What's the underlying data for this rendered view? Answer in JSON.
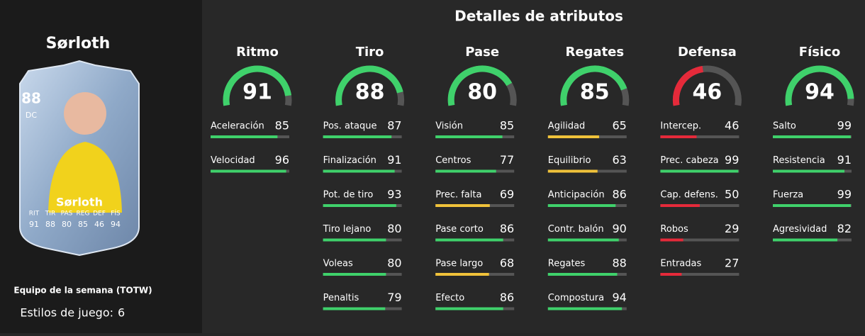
{
  "player": {
    "name": "Sørloth",
    "card": {
      "rating": 88,
      "position": "DC",
      "name": "Sørloth",
      "stat_labels": [
        "RIT",
        "TIR",
        "PAS",
        "REG",
        "DEF",
        "FÍS"
      ]
    },
    "promo": "Equipo de la semana (TOTW)",
    "playstyles": {
      "label": "Estilos de juego:",
      "value": 6
    }
  },
  "attributes": {
    "title": "Detalles de atributos",
    "categories": [
      {
        "name": "Ritmo",
        "rating": 91,
        "stats": [
          [
            "Aceleración",
            85
          ],
          [
            "Velocidad",
            96
          ]
        ]
      },
      {
        "name": "Tiro",
        "rating": 88,
        "stats": [
          [
            "Pos. ataque",
            87
          ],
          [
            "Finalización",
            91
          ],
          [
            "Pot. de tiro",
            93
          ],
          [
            "Tiro lejano",
            80
          ],
          [
            "Voleas",
            80
          ],
          [
            "Penaltis",
            79
          ]
        ]
      },
      {
        "name": "Pase",
        "rating": 80,
        "stats": [
          [
            "Visión",
            85
          ],
          [
            "Centros",
            77
          ],
          [
            "Prec. falta",
            69
          ],
          [
            "Pase corto",
            86
          ],
          [
            "Pase largo",
            68
          ],
          [
            "Efecto",
            86
          ]
        ]
      },
      {
        "name": "Regates",
        "rating": 85,
        "stats": [
          [
            "Agilidad",
            65
          ],
          [
            "Equilibrio",
            63
          ],
          [
            "Anticipación",
            86
          ],
          [
            "Contr. balón",
            90
          ],
          [
            "Regates",
            88
          ],
          [
            "Compostura",
            94
          ]
        ]
      },
      {
        "name": "Defensa",
        "rating": 46,
        "stats": [
          [
            "Intercep.",
            46
          ],
          [
            "Prec. cabeza",
            99
          ],
          [
            "Cap. defens.",
            50
          ],
          [
            "Robos",
            29
          ],
          [
            "Entradas",
            27
          ]
        ]
      },
      {
        "name": "Físico",
        "rating": 94,
        "stats": [
          [
            "Salto",
            99
          ],
          [
            "Resistencia",
            91
          ],
          [
            "Fuerza",
            99
          ],
          [
            "Agresividad",
            82
          ]
        ]
      }
    ]
  }
}
